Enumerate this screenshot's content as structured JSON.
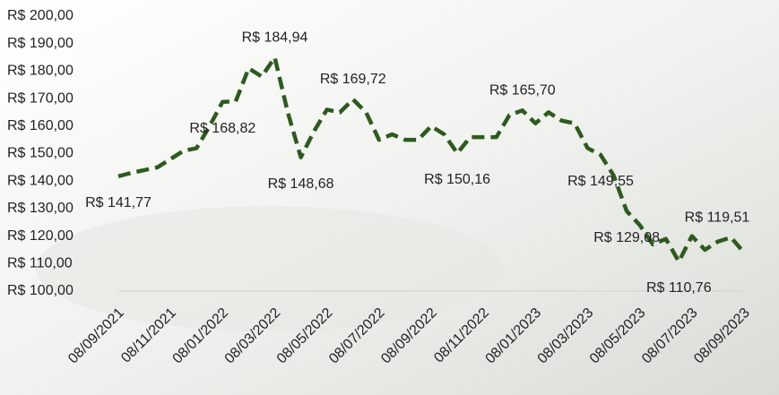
{
  "chart_data": {
    "type": "line",
    "categories": [
      "08/09/2021",
      null,
      null,
      null,
      "08/11/2021",
      null,
      null,
      null,
      "08/01/2022",
      null,
      null,
      null,
      "08/03/2022",
      null,
      null,
      null,
      "08/05/2022",
      null,
      null,
      null,
      "08/07/2022",
      null,
      null,
      null,
      "08/09/2022",
      null,
      null,
      null,
      "08/11/2022",
      null,
      null,
      null,
      "08/01/2023",
      null,
      null,
      null,
      "08/03/2023",
      null,
      null,
      null,
      "08/05/2023",
      null,
      null,
      null,
      "08/07/2023",
      null,
      null,
      null,
      "08/09/2023"
    ],
    "series": [
      {
        "color": "#2e5a1f",
        "values": [
          141.77,
          143,
          144,
          145,
          148,
          151,
          152,
          160,
          168.82,
          169,
          181,
          178,
          184.94,
          165,
          148.68,
          158,
          166,
          165,
          169.72,
          165,
          155,
          157,
          155,
          155,
          160,
          157,
          150.16,
          156,
          156,
          156,
          164,
          165.7,
          161,
          165,
          162,
          161,
          152,
          149.55,
          142,
          129.08,
          124,
          117,
          119,
          110.76,
          120,
          115,
          118,
          119.51,
          114
        ],
        "value_labels": [
          "R$ 141,77",
          null,
          null,
          null,
          null,
          null,
          null,
          null,
          "R$ 168,82",
          null,
          null,
          null,
          "R$ 184,94",
          null,
          "R$ 148,68",
          null,
          null,
          null,
          "R$ 169,72",
          null,
          null,
          null,
          null,
          null,
          null,
          null,
          "R$ 150,16",
          null,
          null,
          null,
          null,
          "R$ 165,70",
          null,
          null,
          null,
          null,
          null,
          "R$ 149,55",
          null,
          "R$ 129,08",
          null,
          null,
          null,
          "R$ 110,76",
          null,
          null,
          null,
          "R$ 119,51",
          null
        ]
      }
    ],
    "ylim": [
      100,
      200
    ],
    "yticks": [
      {
        "value": 100,
        "label": "R$ 100,00"
      },
      {
        "value": 110,
        "label": "R$ 110,00"
      },
      {
        "value": 120,
        "label": "R$ 120,00"
      },
      {
        "value": 130,
        "label": "R$ 130,00"
      },
      {
        "value": 140,
        "label": "R$ 140,00"
      },
      {
        "value": 150,
        "label": "R$ 150,00"
      },
      {
        "value": 160,
        "label": "R$ 160,00"
      },
      {
        "value": 170,
        "label": "R$ 170,00"
      },
      {
        "value": 180,
        "label": "R$ 180,00"
      },
      {
        "value": 190,
        "label": "R$ 190,00"
      },
      {
        "value": 200,
        "label": "R$ 200,00"
      }
    ],
    "grid": false,
    "line_style": "dashed"
  }
}
